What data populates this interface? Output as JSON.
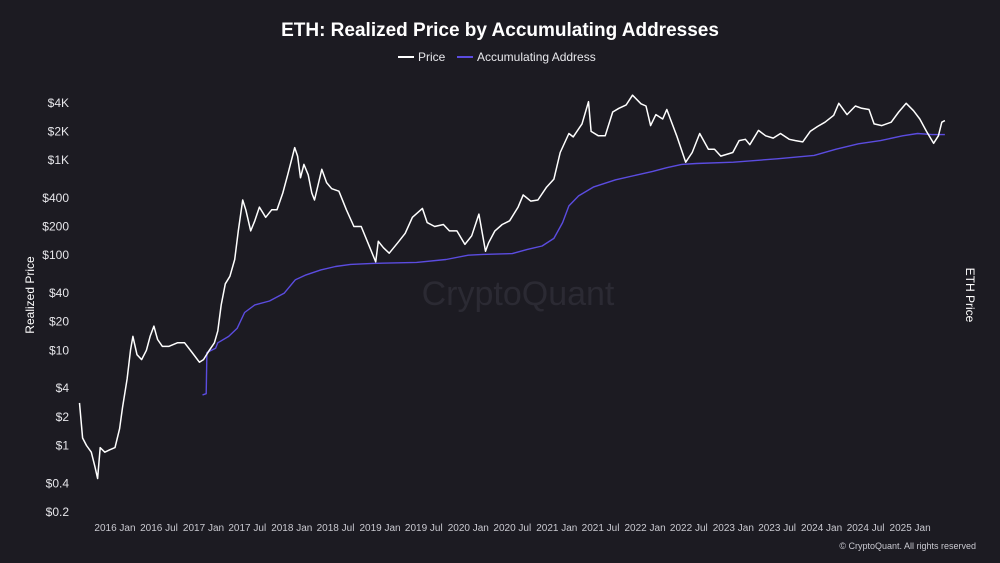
{
  "chart_data": {
    "type": "line",
    "title": "ETH: Realized Price by Accumulating Addresses",
    "ylabel": "Realized Price",
    "y2label": "ETH Price",
    "yscale": "log",
    "ylim": [
      0.2,
      6000
    ],
    "y_ticks": [
      {
        "value": 0.2,
        "label": "$0.2"
      },
      {
        "value": 0.4,
        "label": "$0.4"
      },
      {
        "value": 1,
        "label": "$1"
      },
      {
        "value": 2,
        "label": "$2"
      },
      {
        "value": 4,
        "label": "$4"
      },
      {
        "value": 10,
        "label": "$10"
      },
      {
        "value": 20,
        "label": "$20"
      },
      {
        "value": 40,
        "label": "$40"
      },
      {
        "value": 100,
        "label": "$100"
      },
      {
        "value": 200,
        "label": "$200"
      },
      {
        "value": 400,
        "label": "$400"
      },
      {
        "value": 1000,
        "label": "$1K"
      },
      {
        "value": 2000,
        "label": "$2K"
      },
      {
        "value": 4000,
        "label": "$4K"
      }
    ],
    "xlim": [
      "2015-08-01",
      "2025-06-15"
    ],
    "x_ticks": [
      {
        "value": "2016-01-01",
        "label": "2016 Jan"
      },
      {
        "value": "2016-07-01",
        "label": "2016 Jul"
      },
      {
        "value": "2017-01-01",
        "label": "2017 Jan"
      },
      {
        "value": "2017-07-01",
        "label": "2017 Jul"
      },
      {
        "value": "2018-01-01",
        "label": "2018 Jan"
      },
      {
        "value": "2018-07-01",
        "label": "2018 Jul"
      },
      {
        "value": "2019-01-01",
        "label": "2019 Jan"
      },
      {
        "value": "2019-07-01",
        "label": "2019 Jul"
      },
      {
        "value": "2020-01-01",
        "label": "2020 Jan"
      },
      {
        "value": "2020-07-01",
        "label": "2020 Jul"
      },
      {
        "value": "2021-01-01",
        "label": "2021 Jan"
      },
      {
        "value": "2021-07-01",
        "label": "2021 Jul"
      },
      {
        "value": "2022-01-01",
        "label": "2022 Jan"
      },
      {
        "value": "2022-07-01",
        "label": "2022 Jul"
      },
      {
        "value": "2023-01-01",
        "label": "2023 Jan"
      },
      {
        "value": "2023-07-01",
        "label": "2023 Jul"
      },
      {
        "value": "2024-01-01",
        "label": "2024 Jan"
      },
      {
        "value": "2024-07-01",
        "label": "2024 Jul"
      },
      {
        "value": "2025-01-01",
        "label": "2025 Jan"
      }
    ],
    "legend_position": "top-center",
    "grid": false,
    "series": [
      {
        "name": "Price",
        "color": "#ffffff",
        "points": [
          [
            "2015-08-07",
            2.8
          ],
          [
            "2015-08-20",
            1.2
          ],
          [
            "2015-09-05",
            1.0
          ],
          [
            "2015-09-25",
            0.85
          ],
          [
            "2015-10-10",
            0.6
          ],
          [
            "2015-10-21",
            0.45
          ],
          [
            "2015-11-01",
            0.95
          ],
          [
            "2015-11-20",
            0.85
          ],
          [
            "2015-12-10",
            0.9
          ],
          [
            "2016-01-01",
            0.95
          ],
          [
            "2016-01-20",
            1.5
          ],
          [
            "2016-02-01",
            2.5
          ],
          [
            "2016-02-20",
            5
          ],
          [
            "2016-03-05",
            10
          ],
          [
            "2016-03-15",
            14
          ],
          [
            "2016-04-01",
            9
          ],
          [
            "2016-04-20",
            8
          ],
          [
            "2016-05-10",
            10
          ],
          [
            "2016-05-25",
            14
          ],
          [
            "2016-06-10",
            18
          ],
          [
            "2016-06-18",
            15
          ],
          [
            "2016-06-25",
            13
          ],
          [
            "2016-07-15",
            11
          ],
          [
            "2016-08-10",
            11
          ],
          [
            "2016-09-15",
            12
          ],
          [
            "2016-10-15",
            12
          ],
          [
            "2016-11-15",
            9.5
          ],
          [
            "2016-12-15",
            7.5
          ],
          [
            "2017-01-01",
            8
          ],
          [
            "2017-01-25",
            10
          ],
          [
            "2017-02-15",
            12
          ],
          [
            "2017-03-01",
            16
          ],
          [
            "2017-03-15",
            30
          ],
          [
            "2017-04-01",
            50
          ],
          [
            "2017-04-20",
            60
          ],
          [
            "2017-05-10",
            90
          ],
          [
            "2017-05-25",
            180
          ],
          [
            "2017-06-12",
            380
          ],
          [
            "2017-06-25",
            300
          ],
          [
            "2017-07-15",
            180
          ],
          [
            "2017-08-01",
            230
          ],
          [
            "2017-08-20",
            320
          ],
          [
            "2017-09-15",
            250
          ],
          [
            "2017-10-10",
            300
          ],
          [
            "2017-11-01",
            300
          ],
          [
            "2017-11-25",
            450
          ],
          [
            "2017-12-15",
            700
          ],
          [
            "2018-01-13",
            1350
          ],
          [
            "2018-01-25",
            1100
          ],
          [
            "2018-02-06",
            650
          ],
          [
            "2018-02-20",
            900
          ],
          [
            "2018-03-10",
            700
          ],
          [
            "2018-03-25",
            450
          ],
          [
            "2018-04-05",
            380
          ],
          [
            "2018-05-05",
            800
          ],
          [
            "2018-05-25",
            580
          ],
          [
            "2018-06-15",
            500
          ],
          [
            "2018-07-15",
            470
          ],
          [
            "2018-08-15",
            300
          ],
          [
            "2018-09-15",
            200
          ],
          [
            "2018-10-15",
            200
          ],
          [
            "2018-11-20",
            120
          ],
          [
            "2018-12-14",
            85
          ],
          [
            "2018-12-25",
            140
          ],
          [
            "2019-01-15",
            120
          ],
          [
            "2019-02-08",
            105
          ],
          [
            "2019-03-15",
            135
          ],
          [
            "2019-04-15",
            170
          ],
          [
            "2019-05-15",
            250
          ],
          [
            "2019-06-25",
            310
          ],
          [
            "2019-07-15",
            220
          ],
          [
            "2019-08-15",
            200
          ],
          [
            "2019-09-20",
            210
          ],
          [
            "2019-10-15",
            180
          ],
          [
            "2019-11-15",
            180
          ],
          [
            "2019-12-18",
            130
          ],
          [
            "2020-01-15",
            160
          ],
          [
            "2020-02-14",
            270
          ],
          [
            "2020-03-12",
            110
          ],
          [
            "2020-03-25",
            135
          ],
          [
            "2020-04-20",
            180
          ],
          [
            "2020-05-20",
            210
          ],
          [
            "2020-06-20",
            230
          ],
          [
            "2020-07-25",
            320
          ],
          [
            "2020-08-15",
            430
          ],
          [
            "2020-09-15",
            370
          ],
          [
            "2020-10-15",
            380
          ],
          [
            "2020-11-20",
            520
          ],
          [
            "2020-12-20",
            630
          ],
          [
            "2021-01-15",
            1200
          ],
          [
            "2021-02-20",
            1900
          ],
          [
            "2021-03-10",
            1750
          ],
          [
            "2021-04-15",
            2400
          ],
          [
            "2021-05-12",
            4100
          ],
          [
            "2021-05-23",
            2000
          ],
          [
            "2021-06-22",
            1800
          ],
          [
            "2021-07-20",
            1800
          ],
          [
            "2021-08-20",
            3200
          ],
          [
            "2021-09-15",
            3500
          ],
          [
            "2021-10-15",
            3800
          ],
          [
            "2021-11-10",
            4800
          ],
          [
            "2021-12-15",
            3900
          ],
          [
            "2022-01-05",
            3700
          ],
          [
            "2022-01-24",
            2300
          ],
          [
            "2022-02-15",
            3000
          ],
          [
            "2022-03-15",
            2700
          ],
          [
            "2022-04-01",
            3400
          ],
          [
            "2022-05-12",
            1800
          ],
          [
            "2022-06-18",
            950
          ],
          [
            "2022-07-15",
            1200
          ],
          [
            "2022-08-15",
            1900
          ],
          [
            "2022-09-20",
            1300
          ],
          [
            "2022-10-15",
            1300
          ],
          [
            "2022-11-10",
            1100
          ],
          [
            "2022-12-30",
            1200
          ],
          [
            "2023-01-25",
            1600
          ],
          [
            "2023-02-20",
            1650
          ],
          [
            "2023-03-10",
            1450
          ],
          [
            "2023-04-15",
            2050
          ],
          [
            "2023-05-15",
            1800
          ],
          [
            "2023-06-15",
            1700
          ],
          [
            "2023-07-15",
            1900
          ],
          [
            "2023-08-20",
            1650
          ],
          [
            "2023-09-15",
            1600
          ],
          [
            "2023-10-15",
            1550
          ],
          [
            "2023-11-15",
            2000
          ],
          [
            "2023-12-15",
            2250
          ],
          [
            "2024-01-15",
            2500
          ],
          [
            "2024-02-20",
            2950
          ],
          [
            "2024-03-12",
            3950
          ],
          [
            "2024-04-15",
            3000
          ],
          [
            "2024-05-20",
            3700
          ],
          [
            "2024-06-15",
            3500
          ],
          [
            "2024-07-15",
            3400
          ],
          [
            "2024-08-05",
            2400
          ],
          [
            "2024-09-06",
            2300
          ],
          [
            "2024-10-15",
            2500
          ],
          [
            "2024-11-15",
            3200
          ],
          [
            "2024-12-16",
            3950
          ],
          [
            "2025-01-15",
            3300
          ],
          [
            "2025-02-10",
            2700
          ],
          [
            "2025-03-10",
            2000
          ],
          [
            "2025-04-08",
            1500
          ],
          [
            "2025-04-28",
            1800
          ],
          [
            "2025-05-12",
            2500
          ],
          [
            "2025-05-25",
            2600
          ]
        ]
      },
      {
        "name": "Accumulating Address",
        "color": "#5b4ce0",
        "points": [
          [
            "2016-12-28",
            3.4
          ],
          [
            "2017-01-12",
            3.5
          ],
          [
            "2017-01-15",
            9.5
          ],
          [
            "2017-02-20",
            10.5
          ],
          [
            "2017-03-01",
            12
          ],
          [
            "2017-04-15",
            14
          ],
          [
            "2017-05-20",
            17
          ],
          [
            "2017-06-20",
            25
          ],
          [
            "2017-08-01",
            30
          ],
          [
            "2017-10-01",
            33
          ],
          [
            "2017-12-01",
            40
          ],
          [
            "2018-01-15",
            55
          ],
          [
            "2018-03-01",
            62
          ],
          [
            "2018-05-01",
            70
          ],
          [
            "2018-07-01",
            76
          ],
          [
            "2018-09-01",
            80
          ],
          [
            "2018-12-01",
            82
          ],
          [
            "2019-06-01",
            84
          ],
          [
            "2019-10-01",
            90
          ],
          [
            "2020-01-01",
            100
          ],
          [
            "2020-03-01",
            102
          ],
          [
            "2020-07-01",
            104
          ],
          [
            "2020-09-01",
            115
          ],
          [
            "2020-11-01",
            125
          ],
          [
            "2020-12-20",
            150
          ],
          [
            "2021-01-25",
            220
          ],
          [
            "2021-02-20",
            330
          ],
          [
            "2021-04-01",
            420
          ],
          [
            "2021-06-01",
            520
          ],
          [
            "2021-09-01",
            620
          ],
          [
            "2021-12-01",
            700
          ],
          [
            "2022-02-01",
            760
          ],
          [
            "2022-04-01",
            830
          ],
          [
            "2022-06-01",
            900
          ],
          [
            "2022-08-01",
            920
          ],
          [
            "2023-01-01",
            950
          ],
          [
            "2023-07-01",
            1030
          ],
          [
            "2023-12-01",
            1120
          ],
          [
            "2024-03-01",
            1300
          ],
          [
            "2024-06-01",
            1480
          ],
          [
            "2024-09-01",
            1600
          ],
          [
            "2024-12-01",
            1800
          ],
          [
            "2025-02-01",
            1900
          ],
          [
            "2025-04-01",
            1850
          ],
          [
            "2025-05-25",
            1850
          ]
        ]
      }
    ]
  },
  "watermark": "CryptoQuant",
  "footer": "© CryptoQuant. All rights reserved"
}
